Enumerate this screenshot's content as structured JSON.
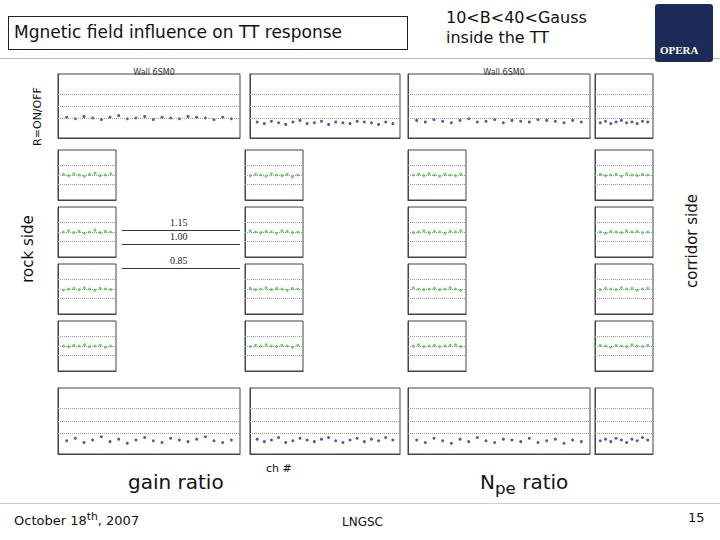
{
  "slide": {
    "title": "Mgnetic field influence on TT response",
    "field_note": [
      "10<B<40<Gauss",
      "inside the TT"
    ],
    "logo": "OPERA",
    "y_caption": "R=ON/OFF",
    "left_caption": "rock side",
    "right_caption": "corridor side",
    "left_group": "gain ratio",
    "x_caption": "ch #",
    "right_group": [
      "N",
      "pe",
      " ratio"
    ],
    "date": [
      "October 18",
      "th",
      ", 2007"
    ],
    "place": "LNGSC",
    "page": 15,
    "levels": [
      1.15,
      {
        "value": 1,
        "label": "1.00"
      },
      0.85
    ]
  },
  "chart_data": [
    {
      "type": "scatter",
      "title": "Wall 6SM0",
      "color": "#1f2d9e",
      "x": [
        1,
        2,
        3,
        4,
        5,
        6,
        7,
        8,
        9,
        10,
        11,
        12,
        13,
        14,
        15,
        16,
        17,
        18,
        19,
        20
      ],
      "values": [
        0.86,
        0.84,
        0.87,
        0.85,
        0.83,
        0.86,
        0.88,
        0.84,
        0.85,
        0.87,
        0.83,
        0.86,
        0.85,
        0.84,
        0.87,
        0.86,
        0.85,
        0.83,
        0.86,
        0.84
      ],
      "xlim": [
        0,
        21
      ],
      "ylim": [
        0.6,
        1.4
      ],
      "tick_labels": false,
      "grid": false
    },
    {
      "type": "scatter",
      "color": "#1f2d9e",
      "x": [
        1,
        2,
        3,
        4,
        5,
        6,
        7,
        8,
        9,
        10,
        11,
        12,
        13,
        14,
        15,
        16,
        17,
        18,
        19,
        20
      ],
      "values": [
        0.8,
        0.78,
        0.81,
        0.79,
        0.77,
        0.8,
        0.82,
        0.78,
        0.79,
        0.81,
        0.77,
        0.8,
        0.79,
        0.78,
        0.81,
        0.8,
        0.79,
        0.77,
        0.8,
        0.78
      ],
      "xlim": [
        0,
        21
      ],
      "ylim": [
        0.6,
        1.4
      ],
      "tick_labels": false,
      "grid": false
    },
    {
      "type": "scatter",
      "color": "#3ccf3c",
      "x": [
        1,
        2,
        3,
        4,
        5,
        6,
        7,
        8,
        9,
        10
      ],
      "values": [
        1.01,
        0.99,
        1.02,
        1.0,
        0.98,
        1.01,
        1.03,
        0.99,
        1.0,
        1.02
      ],
      "xlim": [
        0,
        11
      ],
      "ylim": [
        0.6,
        1.4
      ],
      "tick_labels": false,
      "grid": false
    },
    {
      "type": "scatter",
      "color": "#3ccf3c",
      "x": [
        1,
        2,
        3,
        4,
        5,
        6,
        7,
        8,
        9,
        10
      ],
      "values": [
        0.99,
        1.01,
        1.0,
        0.98,
        1.02,
        1.0,
        0.99,
        1.01,
        0.97,
        1.0
      ],
      "xlim": [
        0,
        11
      ],
      "ylim": [
        0.6,
        1.4
      ],
      "tick_labels": false,
      "grid": false
    },
    {
      "type": "scatter",
      "color": "#3ccf3c",
      "x": [
        1,
        2,
        3,
        4,
        5,
        6,
        7,
        8,
        9,
        10
      ],
      "values": [
        1.0,
        1.02,
        0.99,
        1.01,
        0.98,
        1.0,
        1.03,
        0.99,
        1.01,
        1.0
      ],
      "xlim": [
        0,
        11
      ],
      "ylim": [
        0.6,
        1.4
      ],
      "tick_labels": false,
      "grid": false
    },
    {
      "type": "scatter",
      "color": "#3ccf3c",
      "x": [
        1,
        2,
        3,
        4,
        5,
        6,
        7,
        8,
        9,
        10
      ],
      "values": [
        1.02,
        1.0,
        0.99,
        1.01,
        1.0,
        0.98,
        1.02,
        1.01,
        0.99,
        1.0
      ],
      "xlim": [
        0,
        11
      ],
      "ylim": [
        0.6,
        1.4
      ],
      "tick_labels": false,
      "grid": false
    },
    {
      "type": "scatter",
      "color": "#3ccf3c",
      "x": [
        1,
        2,
        3,
        4,
        5,
        6,
        7,
        8,
        9,
        10
      ],
      "values": [
        0.98,
        1.0,
        1.01,
        0.99,
        1.02,
        1.0,
        0.98,
        1.01,
        1.0,
        0.99
      ],
      "xlim": [
        0,
        11
      ],
      "ylim": [
        0.6,
        1.4
      ],
      "tick_labels": false,
      "grid": false
    },
    {
      "type": "scatter",
      "color": "#3ccf3c",
      "x": [
        1,
        2,
        3,
        4,
        5,
        6,
        7,
        8,
        9,
        10
      ],
      "values": [
        1.01,
        0.99,
        1.0,
        1.02,
        0.99,
        1.01,
        1.0,
        0.98,
        1.01,
        1.0
      ],
      "xlim": [
        0,
        11
      ],
      "ylim": [
        0.6,
        1.4
      ],
      "tick_labels": false,
      "grid": false
    },
    {
      "type": "scatter",
      "color": "#3ccf3c",
      "x": [
        1,
        2,
        3,
        4,
        5,
        6,
        7,
        8,
        9,
        10
      ],
      "values": [
        1.0,
        0.99,
        1.01,
        1.0,
        1.02,
        0.99,
        1.0,
        1.01,
        0.98,
        1.0
      ],
      "xlim": [
        0,
        11
      ],
      "ylim": [
        0.6,
        1.4
      ],
      "tick_labels": false,
      "grid": false
    },
    {
      "type": "scatter",
      "color": "#3ccf3c",
      "x": [
        1,
        2,
        3,
        4,
        5,
        6,
        7,
        8,
        9,
        10
      ],
      "values": [
        0.99,
        1.01,
        1.0,
        1.02,
        1.0,
        0.99,
        1.01,
        1.0,
        0.98,
        1.01
      ],
      "xlim": [
        0,
        11
      ],
      "ylim": [
        0.6,
        1.4
      ],
      "tick_labels": false,
      "grid": false
    },
    {
      "type": "scatter",
      "color": "#1f2d9e",
      "x": [
        1,
        2,
        3,
        4,
        5,
        6,
        7,
        8,
        9,
        10,
        11,
        12,
        13,
        14,
        15,
        16,
        17,
        18,
        19,
        20
      ],
      "values": [
        0.76,
        0.79,
        0.74,
        0.77,
        0.81,
        0.75,
        0.78,
        0.73,
        0.77,
        0.8,
        0.76,
        0.74,
        0.79,
        0.77,
        0.75,
        0.78,
        0.81,
        0.76,
        0.74,
        0.77
      ],
      "xlim": [
        0,
        21
      ],
      "ylim": [
        0.6,
        1.4
      ],
      "tick_labels": false,
      "grid": false
    },
    {
      "type": "scatter",
      "color": "#1f2d9e",
      "x": [
        1,
        2,
        3,
        4,
        5,
        6,
        7,
        8,
        9,
        10,
        11,
        12,
        13,
        14,
        15,
        16,
        17,
        18,
        19,
        20
      ],
      "values": [
        0.78,
        0.75,
        0.77,
        0.8,
        0.74,
        0.76,
        0.79,
        0.77,
        0.75,
        0.78,
        0.8,
        0.76,
        0.74,
        0.77,
        0.79,
        0.75,
        0.78,
        0.76,
        0.8,
        0.77
      ],
      "xlim": [
        0,
        21
      ],
      "ylim": [
        0.6,
        1.4
      ],
      "tick_labels": false,
      "grid": false
    },
    {
      "type": "scatter",
      "title": "Wall 6SM0",
      "color": "#1f2d9e",
      "x": [
        1,
        2,
        3,
        4,
        5,
        6,
        7,
        8,
        9,
        10,
        11,
        12,
        13,
        14,
        15,
        16,
        17,
        18,
        19,
        20
      ],
      "values": [
        0.82,
        0.8,
        0.83,
        0.81,
        0.79,
        0.82,
        0.84,
        0.8,
        0.81,
        0.83,
        0.79,
        0.82,
        0.81,
        0.8,
        0.83,
        0.82,
        0.81,
        0.79,
        0.82,
        0.8
      ],
      "xlim": [
        0,
        21
      ],
      "ylim": [
        0.6,
        1.4
      ],
      "tick_labels": false,
      "grid": false
    },
    {
      "type": "scatter",
      "color": "#1f2d9e",
      "x": [
        1,
        2,
        3,
        4,
        5,
        6,
        7,
        8,
        9,
        10
      ],
      "values": [
        0.79,
        0.81,
        0.78,
        0.8,
        0.82,
        0.79,
        0.8,
        0.78,
        0.81,
        0.8
      ],
      "xlim": [
        0,
        11
      ],
      "ylim": [
        0.6,
        1.4
      ],
      "tick_labels": false,
      "grid": false
    },
    {
      "type": "scatter",
      "color": "#3ccf3c",
      "x": [
        1,
        2,
        3,
        4,
        5,
        6,
        7,
        8,
        9,
        10
      ],
      "values": [
        1.0,
        1.01,
        0.99,
        1.02,
        1.0,
        0.98,
        1.01,
        1.0,
        0.99,
        1.01
      ],
      "xlim": [
        0,
        11
      ],
      "ylim": [
        0.6,
        1.4
      ],
      "tick_labels": false,
      "grid": false
    },
    {
      "type": "scatter",
      "color": "#3ccf3c",
      "x": [
        1,
        2,
        3,
        4,
        5,
        6,
        7,
        8,
        9,
        10
      ],
      "values": [
        1.01,
        0.99,
        1.0,
        1.01,
        0.98,
        1.02,
        1.0,
        0.99,
        1.01,
        1.0
      ],
      "xlim": [
        0,
        11
      ],
      "ylim": [
        0.6,
        1.4
      ],
      "tick_labels": false,
      "grid": false
    },
    {
      "type": "scatter",
      "color": "#3ccf3c",
      "x": [
        1,
        2,
        3,
        4,
        5,
        6,
        7,
        8,
        9,
        10
      ],
      "values": [
        0.99,
        1.0,
        1.02,
        0.99,
        1.01,
        1.0,
        0.98,
        1.01,
        1.0,
        1.02
      ],
      "xlim": [
        0,
        11
      ],
      "ylim": [
        0.6,
        1.4
      ],
      "tick_labels": false,
      "grid": false
    },
    {
      "type": "scatter",
      "color": "#3ccf3c",
      "x": [
        1,
        2,
        3,
        4,
        5,
        6,
        7,
        8,
        9,
        10
      ],
      "values": [
        1.0,
        0.98,
        1.01,
        1.0,
        0.99,
        1.02,
        1.0,
        1.01,
        0.99,
        1.0
      ],
      "xlim": [
        0,
        11
      ],
      "ylim": [
        0.6,
        1.4
      ],
      "tick_labels": false,
      "grid": false
    },
    {
      "type": "scatter",
      "color": "#3ccf3c",
      "x": [
        1,
        2,
        3,
        4,
        5,
        6,
        7,
        8,
        9,
        10
      ],
      "values": [
        1.02,
        1.0,
        0.99,
        1.0,
        1.01,
        0.99,
        1.0,
        1.02,
        1.0,
        0.98
      ],
      "xlim": [
        0,
        11
      ],
      "ylim": [
        0.6,
        1.4
      ],
      "tick_labels": false,
      "grid": false
    },
    {
      "type": "scatter",
      "color": "#3ccf3c",
      "x": [
        1,
        2,
        3,
        4,
        5,
        6,
        7,
        8,
        9,
        10
      ],
      "values": [
        0.99,
        1.01,
        1.0,
        0.99,
        1.02,
        1.0,
        1.01,
        0.98,
        1.0,
        1.01
      ],
      "xlim": [
        0,
        11
      ],
      "ylim": [
        0.6,
        1.4
      ],
      "tick_labels": false,
      "grid": false
    },
    {
      "type": "scatter",
      "color": "#3ccf3c",
      "x": [
        1,
        2,
        3,
        4,
        5,
        6,
        7,
        8,
        9,
        10
      ],
      "values": [
        1.0,
        1.02,
        0.99,
        1.0,
        1.01,
        0.99,
        1.0,
        1.01,
        1.02,
        0.99
      ],
      "xlim": [
        0,
        11
      ],
      "ylim": [
        0.6,
        1.4
      ],
      "tick_labels": false,
      "grid": false
    },
    {
      "type": "scatter",
      "color": "#3ccf3c",
      "x": [
        1,
        2,
        3,
        4,
        5,
        6,
        7,
        8,
        9,
        10
      ],
      "values": [
        1.01,
        1.0,
        0.98,
        1.01,
        1.0,
        0.99,
        1.02,
        1.0,
        0.99,
        1.01
      ],
      "xlim": [
        0,
        11
      ],
      "ylim": [
        0.6,
        1.4
      ],
      "tick_labels": false,
      "grid": false
    },
    {
      "type": "scatter",
      "color": "#1f2d9e",
      "x": [
        1,
        2,
        3,
        4,
        5,
        6,
        7,
        8,
        9,
        10,
        11,
        12,
        13,
        14,
        15,
        16,
        17,
        18,
        19,
        20
      ],
      "values": [
        0.77,
        0.74,
        0.79,
        0.76,
        0.73,
        0.78,
        0.75,
        0.8,
        0.76,
        0.74,
        0.78,
        0.77,
        0.75,
        0.79,
        0.74,
        0.76,
        0.78,
        0.73,
        0.77,
        0.75
      ],
      "xlim": [
        0,
        21
      ],
      "ylim": [
        0.6,
        1.4
      ],
      "tick_labels": false,
      "grid": false
    },
    {
      "type": "scatter",
      "color": "#1f2d9e",
      "x": [
        1,
        2,
        3,
        4,
        5,
        6,
        7,
        8,
        9,
        10
      ],
      "values": [
        0.76,
        0.78,
        0.75,
        0.79,
        0.77,
        0.74,
        0.78,
        0.76,
        0.8,
        0.77
      ],
      "xlim": [
        0,
        11
      ],
      "ylim": [
        0.6,
        1.4
      ],
      "tick_labels": false,
      "grid": false
    }
  ]
}
